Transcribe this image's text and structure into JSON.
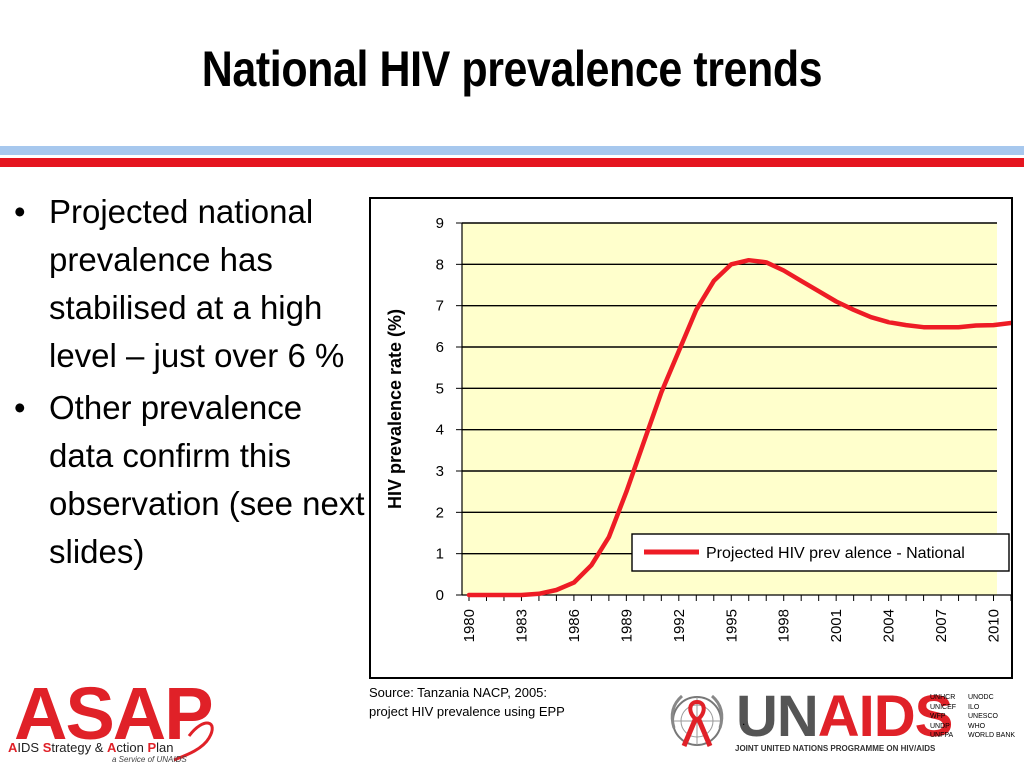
{
  "slide": {
    "title": "National HIV prevalence trends",
    "bullets": [
      "Projected national prevalence has stabilised at a high level – just over 6 %",
      "Other prevalence data confirm this observation (see next slides)"
    ],
    "bullet_symbol": "•",
    "source_lines": [
      "Source: Tanzania NACP, 2005:",
      "project HIV prevalence using EPP"
    ]
  },
  "colors": {
    "accent_red": "#e5151f",
    "accent_blue": "#a7c8ee",
    "plot_background": "#ffffcc",
    "line": "#ee1c25"
  },
  "chart_data": {
    "type": "line",
    "title": "",
    "xlabel": "",
    "ylabel": "HIV prevalence rate (%)",
    "xlim": [
      1980,
      2011
    ],
    "ylim": [
      0,
      9
    ],
    "y_ticks": [
      0,
      1,
      2,
      3,
      4,
      5,
      6,
      7,
      8,
      9
    ],
    "x_ticks": [
      1980,
      1983,
      1986,
      1989,
      1992,
      1995,
      1998,
      2001,
      2004,
      2007,
      2010
    ],
    "x_tick_labels": [
      "1980",
      "1983",
      "1986",
      "1989",
      "1992",
      "1995",
      "1998",
      "2001",
      "2004",
      "2007",
      "2010"
    ],
    "grid": "horizontal",
    "legend_position": "bottom-right",
    "series": [
      {
        "name": "Projected HIV prev alence - National",
        "color": "#ee1c25",
        "x": [
          1980,
          1981,
          1982,
          1983,
          1984,
          1985,
          1986,
          1987,
          1988,
          1989,
          1990,
          1991,
          1992,
          1993,
          1994,
          1995,
          1996,
          1997,
          1998,
          1999,
          2000,
          2001,
          2002,
          2003,
          2004,
          2005,
          2006,
          2007,
          2008,
          2009,
          2010,
          2011
        ],
        "values": [
          0.0,
          0.0,
          0.0,
          0.0,
          0.03,
          0.12,
          0.3,
          0.72,
          1.4,
          2.5,
          3.7,
          4.9,
          5.9,
          6.9,
          7.6,
          8.0,
          8.1,
          8.05,
          7.85,
          7.6,
          7.35,
          7.1,
          6.9,
          6.72,
          6.6,
          6.53,
          6.48,
          6.48,
          6.48,
          6.52,
          6.53,
          6.58
        ]
      }
    ]
  },
  "logos": {
    "asap": {
      "word": "ASAP",
      "subtitle_parts": [
        "A",
        "IDS ",
        "S",
        "trategy & ",
        "A",
        "ction ",
        "P",
        "lan"
      ],
      "service": "a Service of UNAIDS"
    },
    "unaids": {
      "word_gray": "UN",
      "word_red": "AIDS",
      "dot": ".",
      "subtitle": "JOINT UNITED NATIONS PROGRAMME ON HIV/AIDS",
      "cosponsors_left": [
        "UNHCR",
        "UNICEF",
        "WFP",
        "UNDP",
        "UNFPA"
      ],
      "cosponsors_mid": [
        "UNODC",
        "ILO",
        "UNESCO",
        "WHO",
        "WORLD BANK"
      ]
    }
  }
}
